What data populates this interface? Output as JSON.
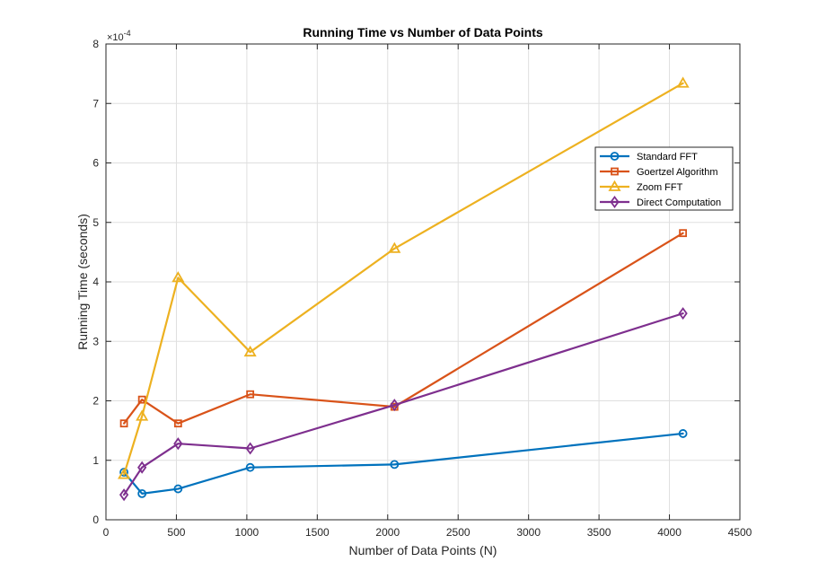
{
  "chart_data": {
    "type": "line",
    "title": "Running Time vs Number of Data Points",
    "xlabel": "Number of Data Points (N)",
    "ylabel": "Running Time (seconds)",
    "y_exponent_label": "×10",
    "y_exponent_power": "-4",
    "xlim": [
      0,
      4500
    ],
    "ylim": [
      0,
      8
    ],
    "y_scale_factor": 0.0001,
    "grid": true,
    "legend_position": "upper-right",
    "x": [
      128,
      256,
      512,
      1024,
      2048,
      4096
    ],
    "xticks": [
      0,
      500,
      1000,
      1500,
      2000,
      2500,
      3000,
      3500,
      4000,
      4500
    ],
    "yticks": [
      0,
      1,
      2,
      3,
      4,
      5,
      6,
      7,
      8
    ],
    "series": [
      {
        "name": "Standard FFT",
        "color": "#0072BD",
        "marker": "circle",
        "values": [
          0.8,
          0.44,
          0.52,
          0.88,
          0.93,
          1.45
        ]
      },
      {
        "name": "Goertzel Algorithm",
        "color": "#D95319",
        "marker": "square",
        "values": [
          1.62,
          2.02,
          1.62,
          2.11,
          1.9,
          4.82
        ]
      },
      {
        "name": "Zoom FFT",
        "color": "#EDB120",
        "marker": "triangle",
        "values": [
          0.76,
          1.74,
          4.07,
          2.82,
          4.56,
          7.34
        ]
      },
      {
        "name": "Direct Computation",
        "color": "#7E2F8E",
        "marker": "diamond",
        "values": [
          0.42,
          0.88,
          1.28,
          1.2,
          1.93,
          3.47
        ]
      }
    ]
  }
}
